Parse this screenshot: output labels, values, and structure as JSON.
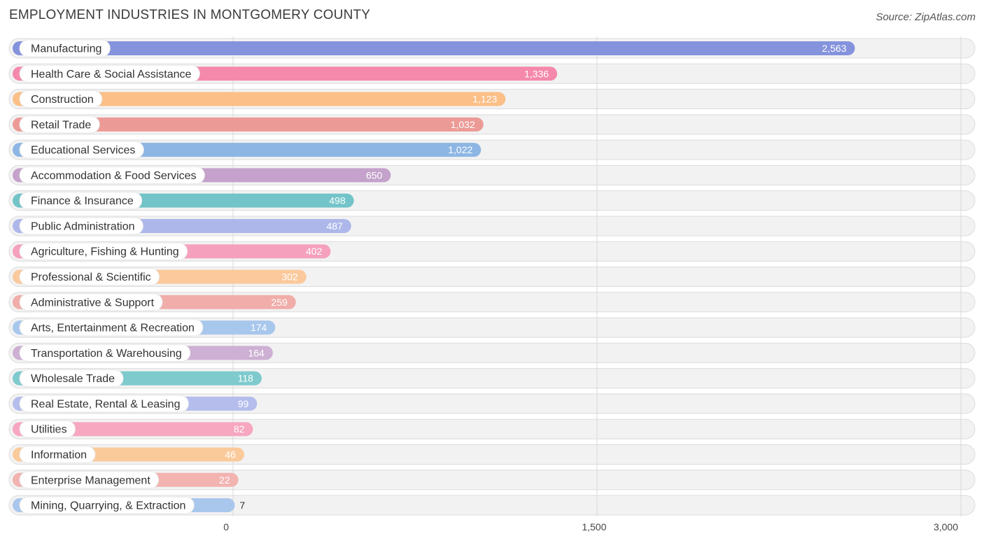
{
  "chart_data": {
    "type": "bar",
    "orientation": "horizontal",
    "title": "EMPLOYMENT INDUSTRIES IN MONTGOMERY COUNTY",
    "source": "Source: ZipAtlas.com",
    "xlabel": "",
    "ylabel": "",
    "xlim": [
      0,
      3000
    ],
    "ticks": [
      0,
      1500,
      3000
    ],
    "tick_labels": [
      "0",
      "1,500",
      "3,000"
    ],
    "categories": [
      "Manufacturing",
      "Health Care & Social Assistance",
      "Construction",
      "Retail Trade",
      "Educational Services",
      "Accommodation & Food Services",
      "Finance & Insurance",
      "Public Administration",
      "Agriculture, Fishing & Hunting",
      "Professional & Scientific",
      "Administrative & Support",
      "Arts, Entertainment & Recreation",
      "Transportation & Warehousing",
      "Wholesale Trade",
      "Real Estate, Rental & Leasing",
      "Utilities",
      "Information",
      "Enterprise Management",
      "Mining, Quarrying, & Extraction"
    ],
    "values": [
      2563,
      1336,
      1123,
      1032,
      1022,
      650,
      498,
      487,
      402,
      302,
      259,
      174,
      164,
      118,
      99,
      82,
      46,
      22,
      7
    ],
    "value_labels": [
      "2,563",
      "1,336",
      "1,123",
      "1,032",
      "1,022",
      "650",
      "498",
      "487",
      "402",
      "302",
      "259",
      "174",
      "164",
      "118",
      "99",
      "82",
      "46",
      "22",
      "7"
    ],
    "colors": [
      "#8593dd",
      "#f589ab",
      "#fbbf87",
      "#ec9a96",
      "#8db6e4",
      "#c4a2cb",
      "#72c4c9",
      "#adb7ea",
      "#f5a1bd",
      "#fbc99b",
      "#f0ada9",
      "#a8c7ec",
      "#cdb0d4",
      "#7ecacd",
      "#b4bdec",
      "#f7a7c0",
      "#fbca9a",
      "#f2b3b1",
      "#a9c7ec"
    ]
  }
}
